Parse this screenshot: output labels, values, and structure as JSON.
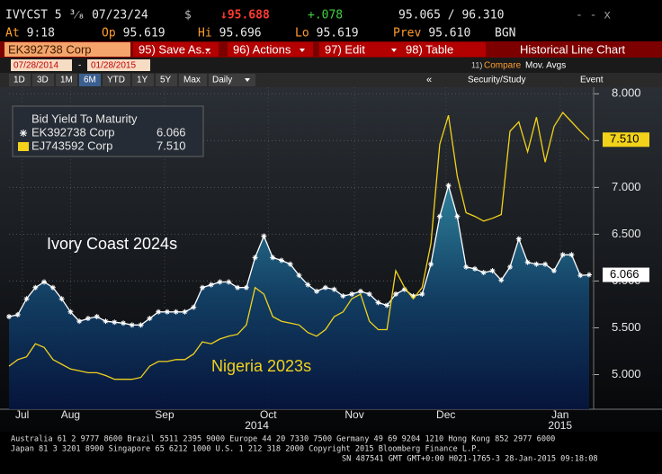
{
  "header": {
    "security": "IVYCST 5 ³⁄₈ 07/23/24",
    "currency": "$",
    "last": "↓95.688",
    "change": "+.078",
    "bid_ask": "95.065 / 96.310",
    "window_controls": "- ‑ x",
    "quote": [
      {
        "label": "At",
        "value": "9:18"
      },
      {
        "label": "Op",
        "value": "95.619"
      },
      {
        "label": "Hi",
        "value": "95.696"
      },
      {
        "label": "Lo",
        "value": "95.619"
      },
      {
        "label": "Prev",
        "value": "95.610"
      }
    ],
    "source": "BGN"
  },
  "toolbar": {
    "security_input": "EK392738 Corp",
    "buttons": [
      "95) Save As...",
      "96) Actions",
      "97) Edit",
      "98) Table"
    ],
    "title": "Historical Line Chart"
  },
  "range": {
    "start": "07/28/2014",
    "separator": "-",
    "end": "01/28/2015",
    "compare_code": "11)",
    "compare": "Compare",
    "mov_avgs": "Mov. Avgs"
  },
  "periods": {
    "options": [
      "1D",
      "3D",
      "1M",
      "6M",
      "YTD",
      "1Y",
      "5Y",
      "Max"
    ],
    "selected": "6M",
    "frequency": "Daily",
    "collapse": "«",
    "security_study": "Security/Study",
    "event": "Event"
  },
  "chart_data": {
    "type": "line",
    "legend_title": "Bid Yield To Maturity",
    "annotations": [
      {
        "text": "Ivory Coast 2024s",
        "color": "#ffffff"
      },
      {
        "text": "Nigeria 2023s",
        "color": "#f2d21b"
      }
    ],
    "categories": [
      null,
      null,
      null,
      null,
      null,
      null,
      null,
      null,
      null,
      null,
      null,
      null,
      null,
      null,
      null,
      null,
      null,
      null,
      null,
      null,
      null,
      null,
      null,
      null,
      null,
      null,
      null,
      null,
      null,
      null,
      null,
      null,
      null,
      null,
      null,
      null,
      null,
      null,
      null,
      null,
      null,
      null,
      null,
      null,
      null,
      null,
      null,
      null,
      null,
      null,
      null,
      null,
      null,
      null,
      null,
      null,
      null,
      null,
      null,
      null,
      null,
      null,
      null,
      null,
      null,
      null,
      null
    ],
    "series": [
      {
        "name": "EK392738 Corp",
        "color": "#ffffff",
        "marker": "star",
        "fill": true,
        "last_label": "6.066",
        "values": [
          5.62,
          5.64,
          5.81,
          5.93,
          5.99,
          5.93,
          5.81,
          5.67,
          5.57,
          5.6,
          5.62,
          5.57,
          5.56,
          5.55,
          5.53,
          5.53,
          5.6,
          5.67,
          5.67,
          5.67,
          5.67,
          5.72,
          5.93,
          5.96,
          5.99,
          5.99,
          5.93,
          5.93,
          6.25,
          6.48,
          6.25,
          6.22,
          6.18,
          6.06,
          5.96,
          5.89,
          5.93,
          5.91,
          5.84,
          5.86,
          5.89,
          5.86,
          5.77,
          5.74,
          5.86,
          5.91,
          5.84,
          5.86,
          6.18,
          6.69,
          7.02,
          6.69,
          6.15,
          6.13,
          6.09,
          6.11,
          6.01,
          6.15,
          6.45,
          6.2,
          6.18,
          6.18,
          6.11,
          6.28,
          6.28,
          6.06,
          6.066
        ]
      },
      {
        "name": "EJ743592 Corp",
        "color": "#f2d21b",
        "marker": "none",
        "fill": false,
        "last_label": "7.510",
        "values": [
          5.09,
          5.16,
          5.19,
          5.33,
          5.29,
          5.16,
          5.11,
          5.06,
          5.04,
          5.02,
          5.02,
          4.99,
          4.95,
          4.95,
          4.95,
          4.97,
          5.09,
          5.14,
          5.14,
          5.16,
          5.16,
          5.22,
          5.35,
          5.33,
          5.38,
          5.41,
          5.43,
          5.53,
          5.93,
          5.86,
          5.62,
          5.57,
          5.55,
          5.53,
          5.45,
          5.41,
          5.48,
          5.62,
          5.67,
          5.81,
          5.86,
          5.57,
          5.48,
          5.48,
          6.11,
          5.93,
          5.81,
          5.93,
          6.4,
          7.46,
          7.77,
          7.12,
          6.73,
          6.69,
          6.64,
          6.67,
          6.71,
          7.6,
          7.7,
          7.38,
          7.75,
          7.27,
          7.65,
          7.8,
          7.7,
          7.6,
          7.51
        ]
      }
    ],
    "ylim": [
      4.63,
      8.07
    ],
    "yticks": [
      {
        "value": 5,
        "label": "5.000"
      },
      {
        "value": 5.5,
        "label": "5.500"
      },
      {
        "value": 6,
        "label": "6.000"
      },
      {
        "value": 6.5,
        "label": "6.500"
      },
      {
        "value": 7,
        "label": "7.000"
      },
      {
        "value": 7.5,
        "label": "7.500"
      },
      {
        "value": 8,
        "label": "8.000"
      }
    ],
    "xticks": [
      {
        "value": 1.5,
        "label": "Jul"
      },
      {
        "value": 7,
        "label": "Aug"
      },
      {
        "value": 17.7,
        "label": "Sep"
      },
      {
        "value": 29.5,
        "label": "Oct"
      },
      {
        "value": 39.3,
        "label": "Nov"
      },
      {
        "value": 49.7,
        "label": "Dec"
      },
      {
        "value": 62.7,
        "label": "Jan"
      }
    ],
    "x_groups": [
      {
        "value": 28.2,
        "label": "2014"
      },
      {
        "value": 62.7,
        "label": "2015"
      }
    ],
    "grid": true
  },
  "footer": [
    "Australia 61 2 9777 8600 Brazil 5511 2395 9000 Europe 44 20 7330 7500 Germany 49 69 9204 1210 Hong Kong 852 2977 6000",
    "Japan 81 3 3201 8900         Singapore 65 6212 1000         U.S. 1 212 318 2000         Copyright 2015 Bloomberg Finance L.P.",
    "SN 487541 GMT  GMT+0:00 H021-1765-3 28-Jan-2015 09:18:08"
  ]
}
